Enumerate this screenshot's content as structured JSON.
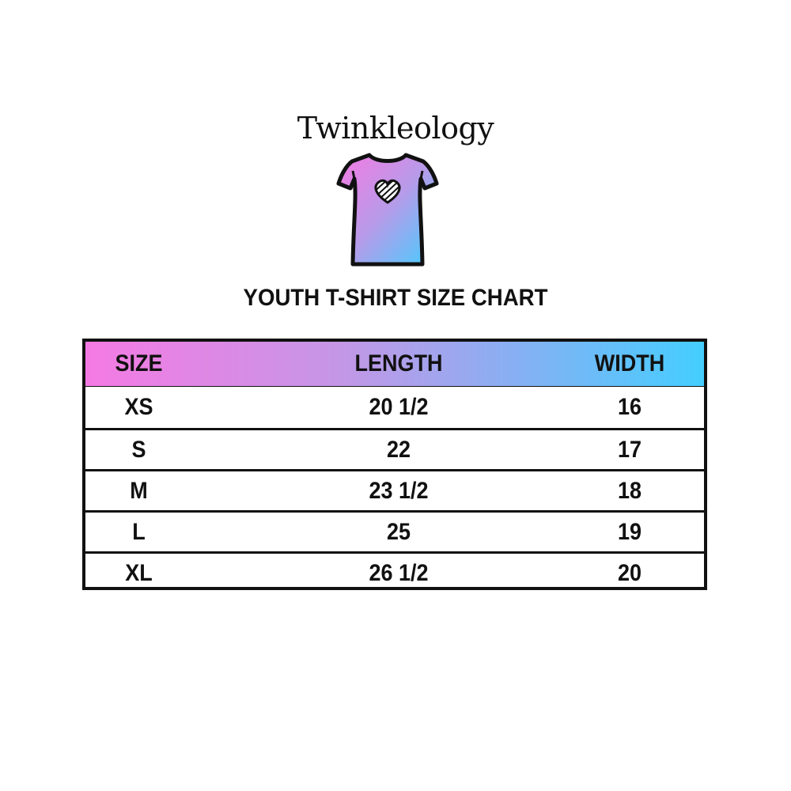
{
  "brand": "Twinkleology",
  "logo_icon": "t-shirt-with-heart-icon",
  "title": "YOUTH T-SHIRT SIZE CHART",
  "colors": {
    "gradient_start": "#f57ae3",
    "gradient_end": "#44ceff",
    "border": "#111111"
  },
  "table": {
    "headers": [
      "SIZE",
      "LENGTH",
      "WIDTH"
    ],
    "rows": [
      [
        "XS",
        "20 1/2",
        "16"
      ],
      [
        "S",
        "22",
        "17"
      ],
      [
        "M",
        "23 1/2",
        "18"
      ],
      [
        "L",
        "25",
        "19"
      ],
      [
        "XL",
        "26 1/2",
        "20"
      ]
    ]
  }
}
